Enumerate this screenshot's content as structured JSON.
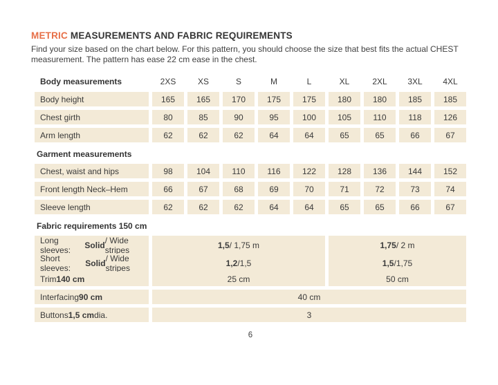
{
  "page": {
    "title_accent": "METRIC",
    "title_rest": " MEASUREMENTS AND FABRIC REQUIREMENTS",
    "intro_line1": "Find your size based on the chart below. For this pattern, you should choose the size that best fits the actual CHEST",
    "intro_line2": "measurement. The pattern has ease 22 cm ease in the chest.",
    "page_number": "6"
  },
  "colors": {
    "accent": "#E76F47",
    "cell_background": "#F3EAD7",
    "text": "#3A3A3A"
  },
  "table": {
    "header": {
      "label": "Body measurements",
      "sizes": [
        "2XS",
        "XS",
        "S",
        "M",
        "L",
        "XL",
        "2XL",
        "3XL",
        "4XL"
      ]
    },
    "body_rows": [
      {
        "label": "Body height",
        "values": [
          "165",
          "165",
          "170",
          "175",
          "175",
          "180",
          "180",
          "185",
          "185"
        ]
      },
      {
        "label": "Chest girth",
        "values": [
          "80",
          "85",
          "90",
          "95",
          "100",
          "105",
          "110",
          "118",
          "126"
        ]
      },
      {
        "label": "Arm length",
        "values": [
          "62",
          "62",
          "62",
          "64",
          "64",
          "65",
          "65",
          "66",
          "67"
        ]
      }
    ],
    "garment_heading": "Garment measurements",
    "garment_rows": [
      {
        "label": "Chest, waist and hips",
        "values": [
          "98",
          "104",
          "110",
          "116",
          "122",
          "128",
          "136",
          "144",
          "152"
        ]
      },
      {
        "label": "Front length Neck–Hem",
        "values": [
          "66",
          "67",
          "68",
          "69",
          "70",
          "71",
          "72",
          "73",
          "74"
        ]
      },
      {
        "label": "Sleeve length",
        "values": [
          "62",
          "62",
          "62",
          "64",
          "64",
          "65",
          "65",
          "66",
          "67"
        ]
      }
    ],
    "fabric_heading": "Fabric requirements 150 cm",
    "fabric_rows": [
      {
        "label": {
          "pre": "Long sleeves: ",
          "bold": "Solid",
          "post": " / Wide stripes"
        },
        "cells": [
          {
            "b": "1,5",
            "t": " / 1,75 m"
          },
          {
            "b": "1,75",
            "t": " / 2 m"
          }
        ]
      },
      {
        "label": {
          "pre": "Short sleeves: ",
          "bold": "Solid",
          "post": " / Wide stripes"
        },
        "cells": [
          {
            "b": "1,2",
            "t": " /1,5"
          },
          {
            "b": "1,5",
            "t": " /1,75"
          }
        ]
      },
      {
        "label": {
          "pre": "Trim ",
          "bold": "140 cm",
          "post": ""
        },
        "cells": [
          {
            "b": "",
            "t": "25 cm"
          },
          {
            "b": "",
            "t": "50 cm"
          }
        ]
      },
      {
        "label": {
          "pre": "Interfacing ",
          "bold": "90 cm",
          "post": ""
        },
        "cells": [
          {
            "b": "",
            "t": "40 cm"
          }
        ]
      },
      {
        "label": {
          "pre": "Buttons ",
          "bold": "1,5 cm",
          "post": " dia."
        },
        "cells": [
          {
            "b": "",
            "t": "3"
          }
        ]
      }
    ]
  }
}
